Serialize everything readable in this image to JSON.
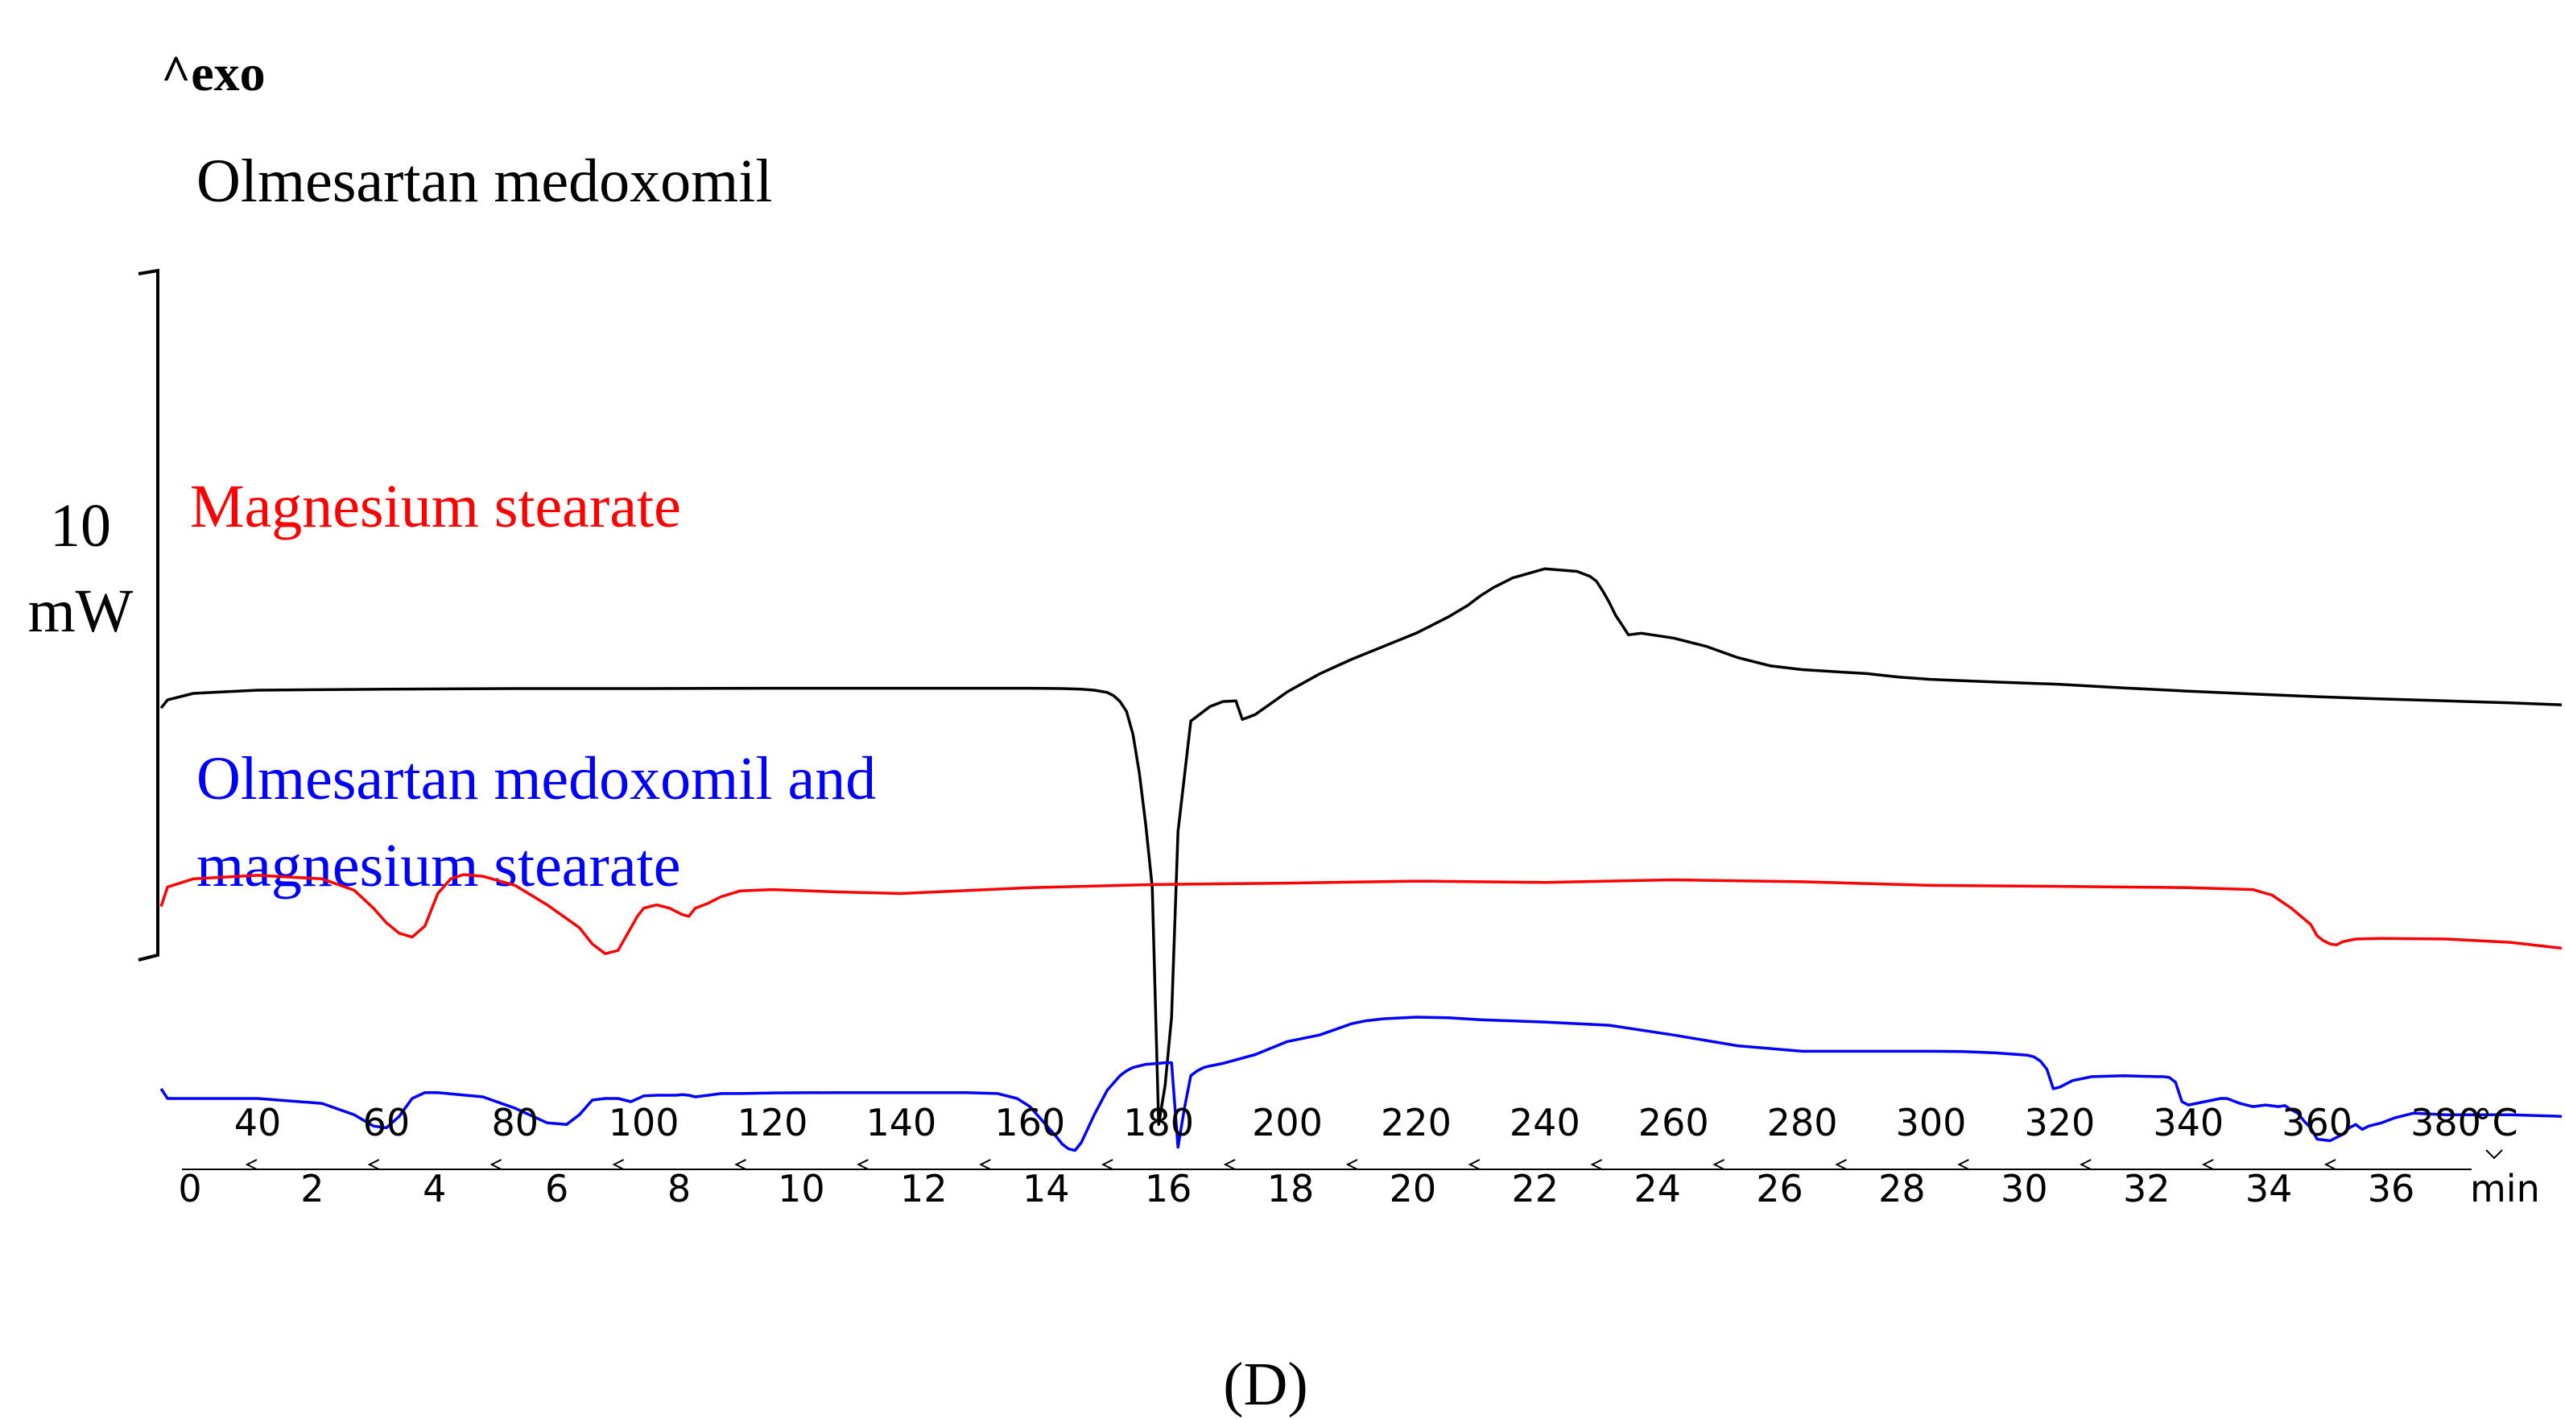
{
  "chart_data": {
    "type": "line",
    "title": "^exo",
    "caption": "(D)",
    "scale_bar": {
      "value": "10",
      "unit": "mW"
    },
    "x_temperature_axis": {
      "label": "°C",
      "ticks": [
        40,
        60,
        80,
        100,
        120,
        140,
        160,
        180,
        200,
        220,
        240,
        260,
        280,
        300,
        320,
        340,
        360,
        380
      ],
      "range": [
        25,
        400
      ]
    },
    "x_time_axis": {
      "label": "min",
      "ticks": [
        0,
        2,
        4,
        6,
        8,
        10,
        12,
        14,
        16,
        18,
        20,
        22,
        24,
        26,
        28,
        30,
        32,
        34,
        36
      ],
      "range": [
        0,
        37.5
      ]
    },
    "series": [
      {
        "name": "Olmesartan medoxomil",
        "color": "#000000",
        "baseline_mW": 7.0,
        "x": [
          25,
          26,
          30,
          40,
          60,
          80,
          100,
          120,
          140,
          150,
          160,
          165,
          168,
          170,
          172,
          173,
          174,
          175,
          176,
          177,
          178,
          179,
          180,
          181,
          182,
          183,
          185,
          188,
          190,
          192,
          193,
          195,
          200,
          205,
          210,
          220,
          225,
          228,
          230,
          232,
          235,
          240,
          245,
          247,
          248,
          249,
          250,
          251,
          252,
          253,
          255,
          260,
          265,
          270,
          275,
          280,
          285,
          290,
          295,
          300,
          310,
          320,
          330,
          340,
          350,
          360,
          370,
          380,
          390,
          398
        ],
        "y": [
          7.0,
          7.25,
          7.45,
          7.55,
          7.58,
          7.6,
          7.6,
          7.61,
          7.61,
          7.61,
          7.61,
          7.6,
          7.58,
          7.55,
          7.48,
          7.38,
          7.2,
          6.9,
          6.2,
          5.0,
          3.4,
          1.5,
          -5.8,
          -4.6,
          -2.5,
          3.2,
          6.6,
          7.05,
          7.2,
          7.22,
          6.65,
          6.8,
          7.5,
          8.05,
          8.5,
          9.3,
          9.8,
          10.15,
          10.45,
          10.7,
          11.0,
          11.28,
          11.2,
          11.05,
          10.9,
          10.6,
          10.25,
          9.85,
          9.55,
          9.25,
          9.3,
          9.15,
          8.9,
          8.55,
          8.3,
          8.18,
          8.12,
          8.06,
          7.95,
          7.88,
          7.8,
          7.73,
          7.62,
          7.52,
          7.43,
          7.35,
          7.28,
          7.22,
          7.16,
          7.1
        ]
      },
      {
        "name": "Magnesium stearate",
        "color": "#ff0000",
        "baseline_mW": 1.0,
        "x": [
          25,
          26,
          30,
          40,
          50,
          55,
          58,
          60,
          62,
          64,
          66,
          67,
          68,
          70,
          72,
          75,
          80,
          85,
          90,
          92,
          94,
          96,
          98,
          99,
          100,
          102,
          104,
          106,
          107,
          108,
          110,
          112,
          115,
          120,
          130,
          140,
          160,
          180,
          200,
          220,
          240,
          260,
          280,
          300,
          320,
          340,
          350,
          353,
          356,
          359,
          360,
          361,
          362,
          363,
          364,
          366,
          370,
          380,
          390,
          398
        ],
        "y": [
          0.9,
          1.5,
          1.75,
          1.86,
          1.75,
          1.4,
          0.85,
          0.4,
          0.08,
          -0.04,
          0.3,
          0.8,
          1.3,
          1.75,
          1.88,
          1.83,
          1.55,
          0.95,
          0.25,
          -0.25,
          -0.55,
          -0.45,
          0.25,
          0.6,
          0.85,
          0.95,
          0.85,
          0.65,
          0.6,
          0.85,
          1.0,
          1.2,
          1.38,
          1.42,
          1.35,
          1.3,
          1.48,
          1.58,
          1.62,
          1.68,
          1.64,
          1.72,
          1.66,
          1.55,
          1.52,
          1.48,
          1.42,
          1.25,
          0.85,
          0.35,
          0.0,
          -0.15,
          -0.25,
          -0.28,
          -0.18,
          -0.1,
          -0.08,
          -0.1,
          -0.2,
          -0.38
        ]
      },
      {
        "name": "Olmesartan medoxomil and magnesium stearate",
        "color": "#0000ff",
        "baseline_mW": -5.0,
        "x": [
          25,
          26,
          30,
          40,
          50,
          55,
          58,
          60,
          62,
          64,
          66,
          68,
          70,
          75,
          80,
          85,
          88,
          90,
          92,
          94,
          96,
          98,
          100,
          102,
          105,
          106,
          107,
          108,
          110,
          112,
          115,
          120,
          130,
          140,
          150,
          155,
          158,
          160,
          162,
          164,
          165,
          166,
          167,
          168,
          170,
          172,
          174,
          175,
          176,
          177,
          178,
          180,
          181,
          182,
          183,
          184,
          185,
          186,
          187,
          188,
          190,
          195,
          200,
          205,
          210,
          212,
          215,
          220,
          225,
          230,
          240,
          250,
          260,
          270,
          280,
          290,
          300,
          305,
          310,
          315,
          316,
          317,
          318,
          319,
          320,
          322,
          325,
          330,
          335,
          336,
          337,
          338,
          339,
          340,
          345,
          346,
          348,
          350,
          352,
          354,
          355,
          356,
          357,
          358,
          359,
          360,
          362,
          364,
          365,
          366,
          367,
          368,
          370,
          372,
          375,
          380,
          390,
          398
        ],
        "y": [
          -4.7,
          -5.0,
          -5.0,
          -5.0,
          -5.15,
          -5.5,
          -5.85,
          -5.9,
          -5.55,
          -5.0,
          -4.82,
          -4.82,
          -4.86,
          -4.95,
          -5.3,
          -5.75,
          -5.8,
          -5.5,
          -5.05,
          -5.0,
          -5.0,
          -5.1,
          -4.92,
          -4.9,
          -4.9,
          -4.88,
          -4.9,
          -4.95,
          -4.9,
          -4.85,
          -4.85,
          -4.83,
          -4.82,
          -4.82,
          -4.82,
          -4.85,
          -5.0,
          -5.25,
          -5.7,
          -6.15,
          -6.4,
          -6.55,
          -6.6,
          -6.35,
          -5.5,
          -4.75,
          -4.3,
          -4.15,
          -4.05,
          -4.0,
          -3.95,
          -3.92,
          -3.9,
          -3.9,
          -6.5,
          -5.3,
          -4.3,
          -4.15,
          -4.05,
          -4.0,
          -3.92,
          -3.65,
          -3.25,
          -3.05,
          -2.7,
          -2.62,
          -2.55,
          -2.5,
          -2.52,
          -2.58,
          -2.65,
          -2.75,
          -3.05,
          -3.38,
          -3.55,
          -3.55,
          -3.55,
          -3.56,
          -3.6,
          -3.67,
          -3.72,
          -3.85,
          -4.1,
          -4.7,
          -4.65,
          -4.45,
          -4.33,
          -4.3,
          -4.33,
          -4.33,
          -4.35,
          -4.5,
          -5.1,
          -5.2,
          -5.0,
          -5.0,
          -5.15,
          -5.25,
          -5.2,
          -5.25,
          -5.22,
          -5.35,
          -5.45,
          -5.7,
          -5.9,
          -6.25,
          -6.3,
          -6.1,
          -5.9,
          -5.8,
          -5.95,
          -5.85,
          -5.75,
          -5.6,
          -5.45,
          -5.5,
          -5.5,
          -5.55
        ]
      }
    ],
    "y_scale_mW": {
      "min": -7,
      "max": 12.5
    }
  }
}
